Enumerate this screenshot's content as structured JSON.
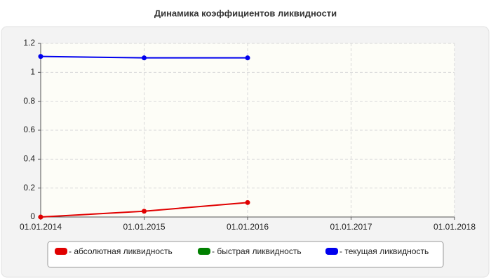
{
  "chart_data": {
    "type": "line",
    "title": "Динамика коэффициентов ликвидности",
    "x": [
      "01.01.2014",
      "01.01.2015",
      "01.01.2016",
      "01.01.2017",
      "01.01.2018"
    ],
    "series": [
      {
        "name": "- абсолютная ликвидность",
        "color": "#e00000",
        "values": [
          0,
          0.04,
          0.1,
          null,
          null
        ]
      },
      {
        "name": "- быстрая ликвидность",
        "color": "#008000",
        "values": [
          null,
          null,
          null,
          null,
          null
        ]
      },
      {
        "name": "- текущая ликвидность",
        "color": "#0000ee",
        "values": [
          1.11,
          1.1,
          1.1,
          null,
          null
        ]
      }
    ],
    "ylim": [
      0,
      1.2
    ],
    "yticks": [
      0,
      0.2,
      0.4,
      0.6,
      0.8,
      1,
      1.2
    ],
    "grid": true
  }
}
